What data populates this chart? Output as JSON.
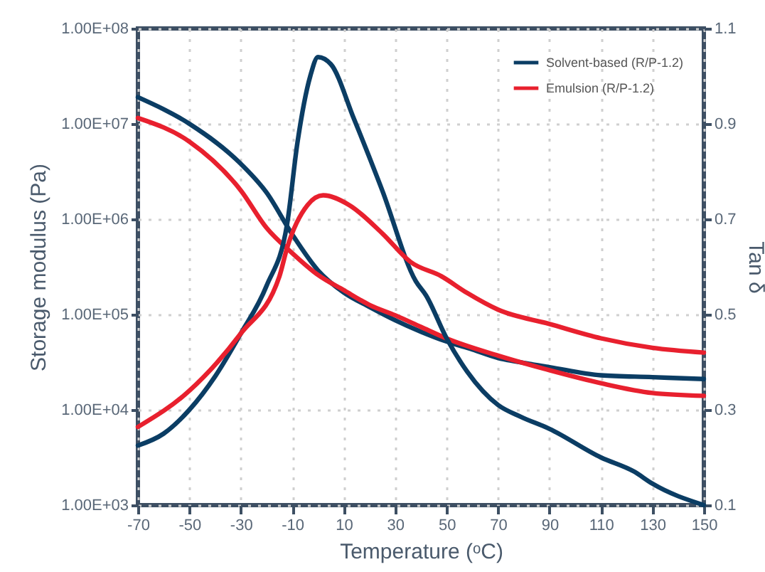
{
  "chart_data": {
    "type": "line",
    "xlabel": "Temperature (ᵒC)",
    "ylabel": "Storage modulus (Pa)",
    "y2label": "Tan δ",
    "xlim": [
      -70,
      150
    ],
    "xticks": [
      -70,
      -50,
      -30,
      -10,
      10,
      30,
      50,
      70,
      90,
      110,
      130,
      150
    ],
    "ylim": [
      1000,
      100000000
    ],
    "yticks": [
      {
        "value": 1000,
        "label": "1.00E+03"
      },
      {
        "value": 10000,
        "label": "1.00E+04"
      },
      {
        "value": 100000,
        "label": "1.00E+05"
      },
      {
        "value": 1000000,
        "label": "1.00E+06"
      },
      {
        "value": 10000000,
        "label": "1.00E+07"
      },
      {
        "value": 100000000,
        "label": "1.00E+08"
      }
    ],
    "y2lim": [
      0.1,
      1.1
    ],
    "y2ticks": [
      0.1,
      0.3,
      0.5,
      0.7,
      0.9,
      1.1
    ],
    "log": "y",
    "grid": true,
    "legend": "top right",
    "line_style": "solid",
    "marker": "none",
    "series": [
      {
        "name": "Solvent-based (R/P-1.2)",
        "color": "#0b3d64",
        "x": [
          -70,
          -50,
          -30,
          -20,
          -10,
          0,
          10,
          20,
          30,
          40,
          50,
          60,
          70,
          80,
          90,
          110,
          130,
          150
        ],
        "values": [
          19000000,
          10000000,
          3800000,
          1900000,
          690000,
          290000,
          170000,
          120000,
          87000,
          66000,
          52000,
          43000,
          35000,
          31000,
          28000,
          23000,
          22000,
          21000
        ]
      },
      {
        "name": "Emulsion (R/P-1.2)",
        "color": "#e8202e",
        "x": [
          -70,
          -50,
          -30,
          -20,
          -10,
          0,
          10,
          20,
          30,
          40,
          50,
          70,
          90,
          110,
          130,
          150
        ],
        "values": [
          11500000,
          6500000,
          2000000,
          810000,
          440000,
          260000,
          180000,
          126000,
          98000,
          74000,
          56000,
          37000,
          26000,
          19000,
          15000,
          14000
        ]
      },
      {
        "color": "#0b3d64",
        "axis": "y2",
        "x": [
          -70,
          -60,
          -50,
          -40,
          -30,
          -20,
          -12,
          -8,
          -3,
          0,
          5,
          14,
          25,
          38,
          42,
          50,
          58,
          70,
          79,
          90,
          110,
          123,
          130,
          150
        ],
        "values": [
          0.225,
          0.25,
          0.3,
          0.37,
          0.46,
          0.56,
          0.69,
          0.86,
          1.0,
          1.04,
          1.025,
          0.91,
          0.76,
          0.57,
          0.54,
          0.45,
          0.38,
          0.31,
          0.285,
          0.26,
          0.2,
          0.17,
          0.145,
          0.1
        ]
      },
      {
        "color": "#e8202e",
        "axis": "y2",
        "x": [
          -70,
          -50,
          -30,
          -15,
          -12,
          -4,
          2,
          12,
          25,
          36,
          48,
          58,
          70,
          90,
          110,
          130,
          150
        ],
        "values": [
          0.264,
          0.34,
          0.46,
          0.58,
          0.64,
          0.73,
          0.75,
          0.73,
          0.67,
          0.61,
          0.58,
          0.545,
          0.51,
          0.48,
          0.45,
          0.43,
          0.42
        ]
      }
    ]
  }
}
